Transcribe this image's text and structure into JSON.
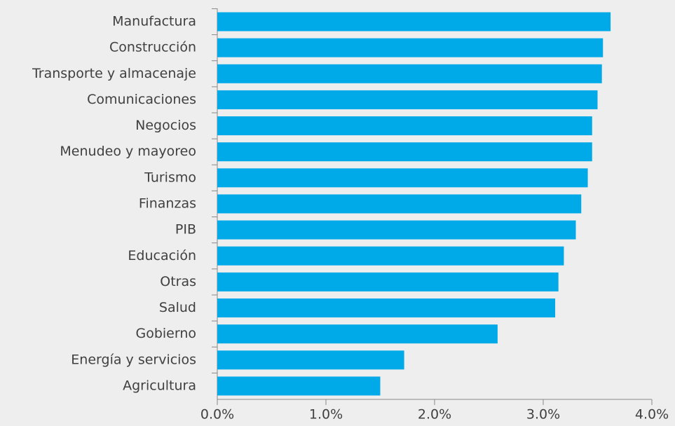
{
  "chart_data": {
    "type": "bar",
    "orientation": "horizontal",
    "categories": [
      "Manufactura",
      "Construcción",
      "Transporte y almacenaje",
      "Comunicaciones",
      "Negocios",
      "Menudeo y mayoreo",
      "Turismo",
      "Finanzas",
      "PIB",
      "Educación",
      "Otras",
      "Salud",
      "Gobierno",
      "Energía y servicios",
      "Agricultura"
    ],
    "values": [
      3.62,
      3.55,
      3.54,
      3.5,
      3.45,
      3.45,
      3.41,
      3.35,
      3.3,
      3.19,
      3.14,
      3.11,
      2.58,
      1.72,
      1.5
    ],
    "color": "#00a9e8",
    "xlim": [
      0,
      4
    ],
    "xticks": [
      {
        "value": 0,
        "label": "0.0%"
      },
      {
        "value": 1,
        "label": "1.0%"
      },
      {
        "value": 2,
        "label": "2.0%"
      },
      {
        "value": 3,
        "label": "3.0%"
      },
      {
        "value": 4,
        "label": "4.0%"
      }
    ]
  }
}
